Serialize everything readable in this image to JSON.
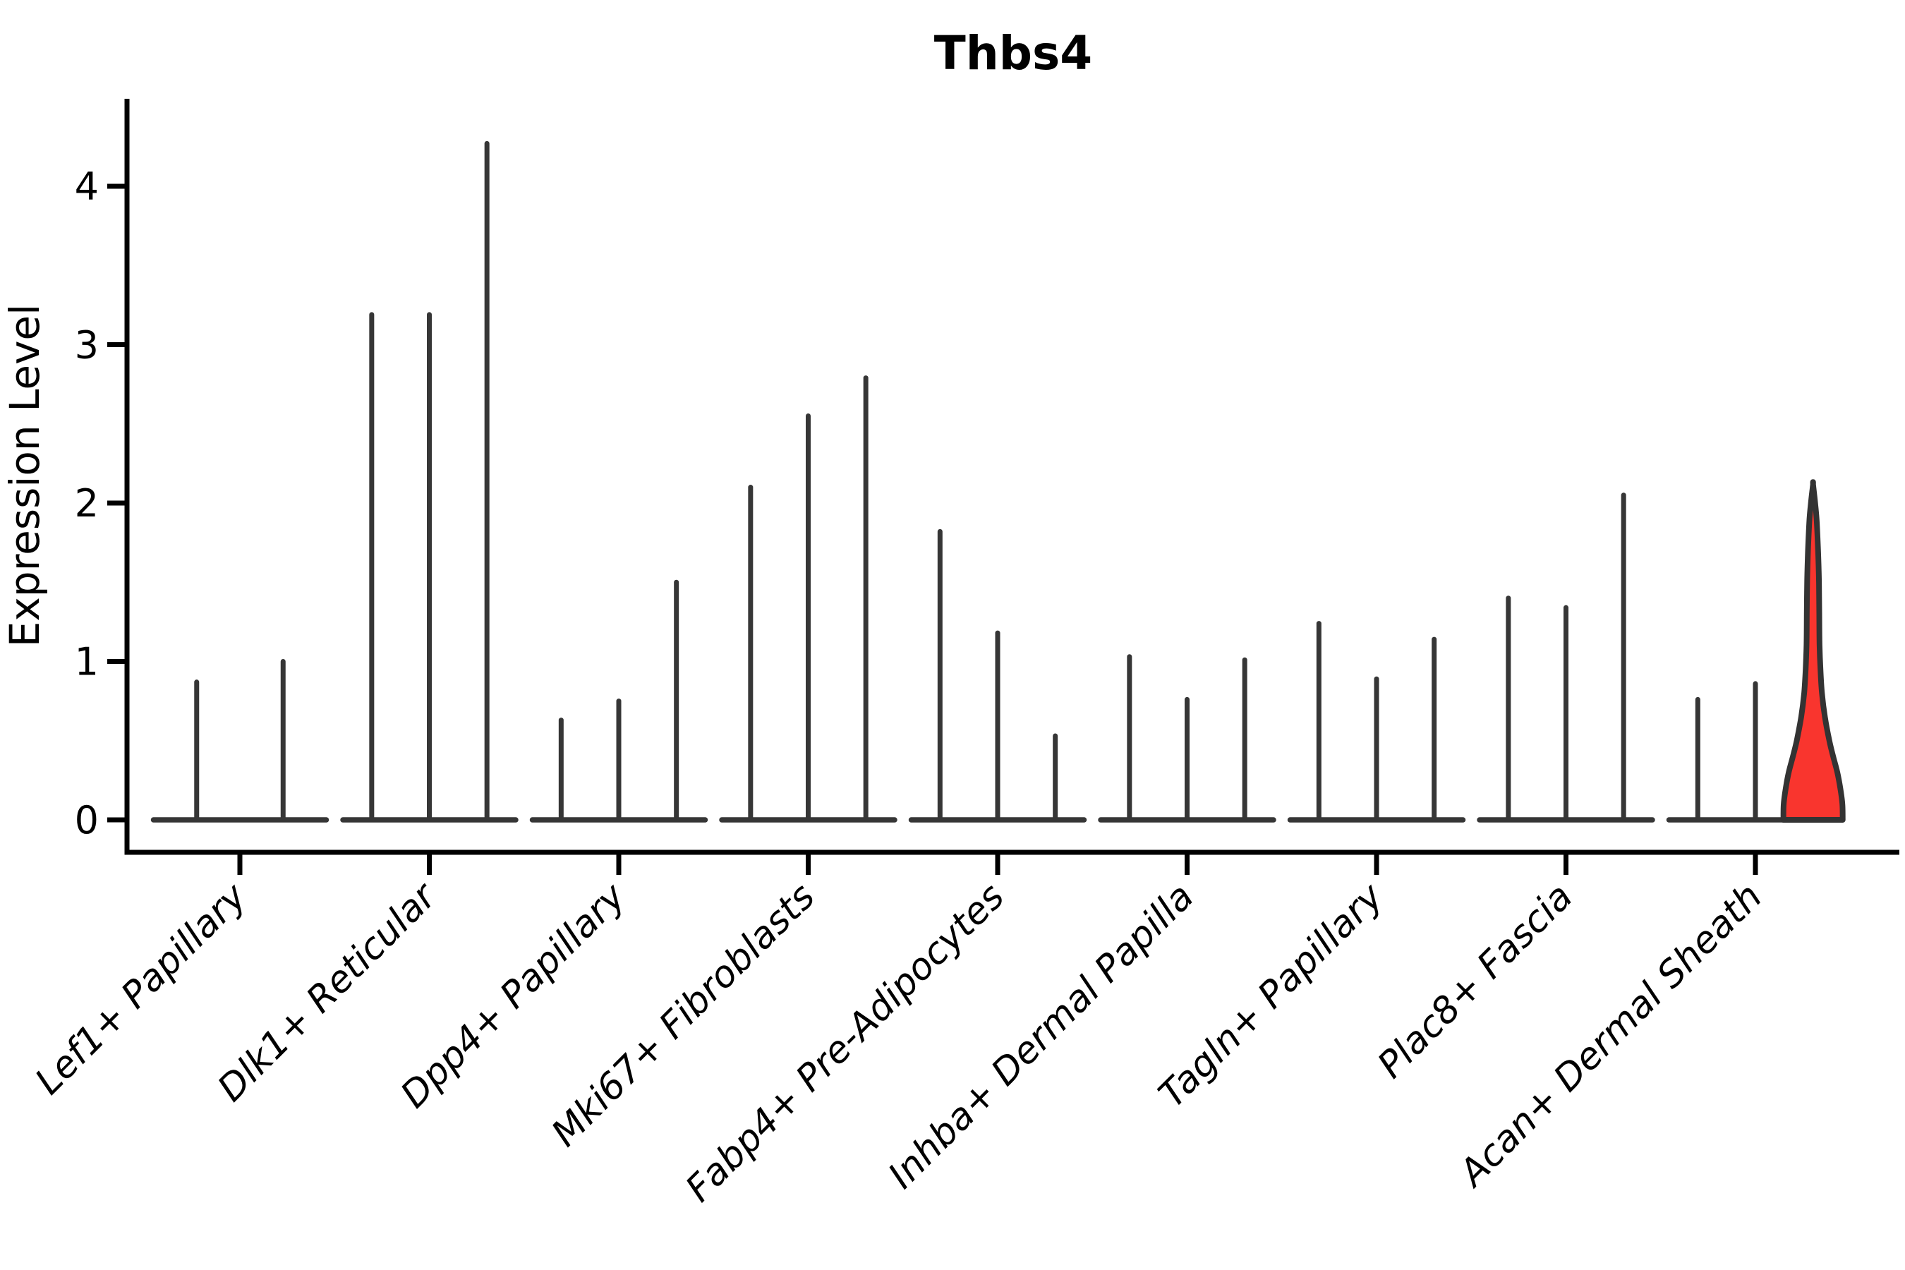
{
  "title": "Thbs4",
  "ylabel": "Expression Level",
  "chart_data": {
    "type": "violin",
    "title": "Thbs4",
    "xlabel": "",
    "ylabel": "Expression Level",
    "ylim": [
      -0.2,
      4.55
    ],
    "yticks": [
      0,
      1,
      2,
      3,
      4
    ],
    "ytick_labels": [
      "0",
      "1",
      "2",
      "3",
      "4"
    ],
    "grid": false,
    "legend": "none",
    "description": "Violin plot of Thbs4 expression across dermal fibroblast cell types. Each category contains 2-3 extremely narrow (spike-like) violins with a flat base at 0; only the last violin of the last category has visible width and is highlighted in red.",
    "categories": [
      "Lef1+ Papillary",
      "Dlk1+ Reticular",
      "Dpp4+ Papillary",
      "Mki67+ Fibroblasts",
      "Fabp4+ Pre-Adipocytes",
      "Inhba+ Dermal Papilla",
      "Tagln+ Papillary",
      "Plac8+ Fascia",
      "Acan+ Dermal Sheath"
    ],
    "groups": [
      {
        "label": "Lef1+ Papillary",
        "violin_maxima": [
          0.87,
          1.0
        ],
        "highlight_index": -1
      },
      {
        "label": "Dlk1+ Reticular",
        "violin_maxima": [
          3.19,
          3.19,
          4.27
        ],
        "highlight_index": -1
      },
      {
        "label": "Dpp4+ Papillary",
        "violin_maxima": [
          0.63,
          0.75,
          1.5
        ],
        "highlight_index": -1
      },
      {
        "label": "Mki67+ Fibroblasts",
        "violin_maxima": [
          2.1,
          2.55,
          2.79
        ],
        "highlight_index": -1
      },
      {
        "label": "Fabp4+ Pre-Adipocytes",
        "violin_maxima": [
          1.82,
          1.18,
          0.53
        ],
        "highlight_index": -1
      },
      {
        "label": "Inhba+ Dermal Papilla",
        "violin_maxima": [
          1.03,
          0.76,
          1.01
        ],
        "highlight_index": -1
      },
      {
        "label": "Tagln+ Papillary",
        "violin_maxima": [
          1.24,
          0.89,
          1.14
        ],
        "highlight_index": -1
      },
      {
        "label": "Plac8+ Fascia",
        "violin_maxima": [
          1.4,
          1.34,
          2.05
        ],
        "highlight_index": -1
      },
      {
        "label": "Acan+ Dermal Sheath",
        "violin_maxima": [
          0.76,
          0.86,
          2.12
        ],
        "highlight_index": 2
      }
    ],
    "highlight_violin": {
      "group": "Acan+ Dermal Sheath",
      "max_value": 2.12,
      "fill_color": "#f9352e",
      "edge_color": "#333333",
      "profile_value_halfwidth": [
        [
          2.12,
          0.0
        ],
        [
          2.02,
          0.06
        ],
        [
          1.9,
          0.12
        ],
        [
          1.7,
          0.17
        ],
        [
          1.5,
          0.2
        ],
        [
          1.3,
          0.21
        ],
        [
          1.1,
          0.22
        ],
        [
          0.95,
          0.25
        ],
        [
          0.8,
          0.3
        ],
        [
          0.65,
          0.4
        ],
        [
          0.5,
          0.55
        ],
        [
          0.4,
          0.68
        ],
        [
          0.3,
          0.82
        ],
        [
          0.2,
          0.92
        ],
        [
          0.1,
          0.99
        ],
        [
          0.0,
          1.0
        ]
      ]
    }
  },
  "style": {
    "background": "#ffffff",
    "spine_color": "#000000",
    "violin_line_color": "#363636",
    "highlight_fill": "#f9352e",
    "highlight_stroke": "#333333",
    "text_color": "#000000"
  }
}
